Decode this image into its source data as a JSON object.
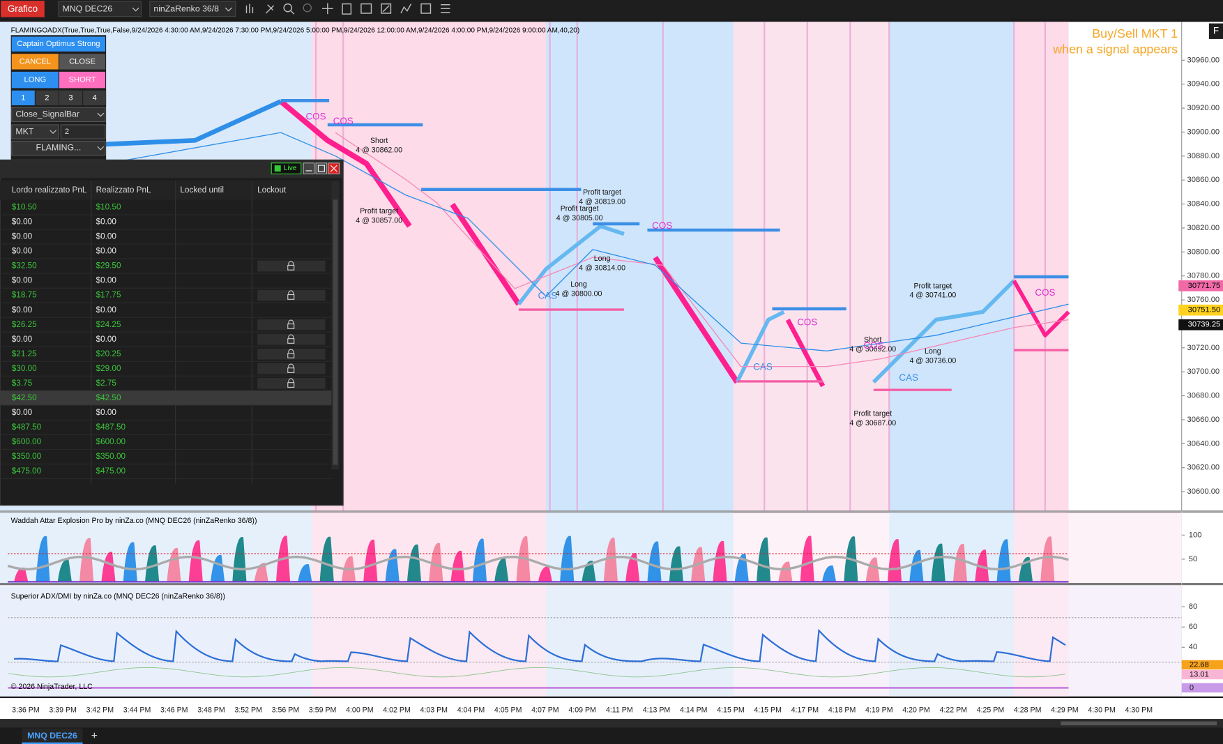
{
  "toolbar": {
    "app_button": "Grafico",
    "instrument": "MNQ DEC26",
    "bar_type": "ninZaRenko 36/8"
  },
  "main_panel": {
    "indicator_label": "FLAMINGOADX(True,True,True,False,9/24/2026 4:30:00 AM,9/24/2026 7:30:00 PM,9/24/2026 5:00:00 PM,9/24/2026 12:00:00 AM,9/24/2026 4:00:00 PM,9/24/2026 9:00:00 AM,40,20)",
    "annotation_lines": [
      "Buy/Sell MKT 1",
      "when a signal appears"
    ],
    "corner_button": "F",
    "price_axis": {
      "ylim": [
        30584,
        30992
      ],
      "ticks": [
        {
          "value": 30960,
          "label": "30960.00"
        },
        {
          "value": 30940,
          "label": "30940.00"
        },
        {
          "value": 30920,
          "label": "30920.00"
        },
        {
          "value": 30900,
          "label": "30900.00"
        },
        {
          "value": 30880,
          "label": "30880.00"
        },
        {
          "value": 30860,
          "label": "30860.00"
        },
        {
          "value": 30840,
          "label": "30840.00"
        },
        {
          "value": 30820,
          "label": "30820.00"
        },
        {
          "value": 30800,
          "label": "30800.00"
        },
        {
          "value": 30780,
          "label": "30780.00"
        },
        {
          "value": 30760,
          "label": "30760.00"
        },
        {
          "value": 30740,
          "label": "30740.00"
        },
        {
          "value": 30720,
          "label": "30720.00"
        },
        {
          "value": 30700,
          "label": "30700.00"
        },
        {
          "value": 30680,
          "label": "30680.00"
        },
        {
          "value": 30660,
          "label": "30660.00"
        },
        {
          "value": 30640,
          "label": "30640.00"
        },
        {
          "value": 30620,
          "label": "30620.00"
        },
        {
          "value": 30600,
          "label": "30600.00"
        }
      ]
    },
    "price_tags": [
      {
        "value": 30771.75,
        "label": "30771.75",
        "color": "#f06aa8"
      },
      {
        "value": 30751.5,
        "label": "30751.50",
        "color": "#ffd21f"
      },
      {
        "value": 30739.25,
        "label": "30739.25",
        "color": "#111111"
      }
    ],
    "trade_labels": [
      {
        "action": "Short",
        "detail": "4 @ 30862.00"
      },
      {
        "action": "Profit target",
        "detail": "4 @ 30857.00"
      },
      {
        "action": "Profit target",
        "detail": "4 @ 30819.00"
      },
      {
        "action": "Profit target",
        "detail": "4 @ 30805.00"
      },
      {
        "action": "Long",
        "detail": "4 @ 30814.00"
      },
      {
        "action": "Long",
        "detail": "4 @ 30800.00"
      },
      {
        "action": "Profit target",
        "detail": "4 @ 30741.00"
      },
      {
        "action": "Short",
        "detail": "4 @ 30692.00"
      },
      {
        "action": "Long",
        "detail": "4 @ 30736.00"
      },
      {
        "action": "Profit target",
        "detail": "4 @ 30687.00"
      }
    ],
    "signal_markers": [
      "COS",
      "COS",
      "COS",
      "COS",
      "COS",
      "COS",
      "CAS",
      "CAS",
      "CAS"
    ]
  },
  "order_panel": {
    "strategy": "Captain Optimus Strong",
    "cancel": "CANCEL",
    "close": "CLOSE",
    "long": "LONG",
    "short": "SHORT",
    "quantity_presets": [
      1,
      2,
      3,
      4
    ],
    "order_mode": "Close_SignalBar",
    "order_type": "MKT",
    "quantity": 2,
    "strategy_select": "FLAMING..."
  },
  "pnl_window": {
    "status": "Live",
    "columns": [
      "Lordo realizzato PnL",
      "Realizzato PnL",
      "Locked until",
      "Lockout"
    ],
    "selected_row": 13,
    "rows": [
      {
        "gross": "$10.50",
        "net": "$10.50",
        "positive": true,
        "locked": false
      },
      {
        "gross": "$0.00",
        "net": "$0.00",
        "positive": false,
        "locked": false
      },
      {
        "gross": "$0.00",
        "net": "$0.00",
        "positive": false,
        "locked": false
      },
      {
        "gross": "$0.00",
        "net": "$0.00",
        "positive": false,
        "locked": false
      },
      {
        "gross": "$32.50",
        "net": "$29.50",
        "positive": true,
        "locked": true
      },
      {
        "gross": "$0.00",
        "net": "$0.00",
        "positive": false,
        "locked": false
      },
      {
        "gross": "$18.75",
        "net": "$17.75",
        "positive": true,
        "locked": true
      },
      {
        "gross": "$0.00",
        "net": "$0.00",
        "positive": false,
        "locked": false
      },
      {
        "gross": "$26.25",
        "net": "$24.25",
        "positive": true,
        "locked": true
      },
      {
        "gross": "$0.00",
        "net": "$0.00",
        "positive": false,
        "locked": true
      },
      {
        "gross": "$21.25",
        "net": "$20.25",
        "positive": true,
        "locked": true
      },
      {
        "gross": "$30.00",
        "net": "$29.00",
        "positive": true,
        "locked": true
      },
      {
        "gross": "$3.75",
        "net": "$2.75",
        "positive": true,
        "locked": true
      },
      {
        "gross": "$42.50",
        "net": "$42.50",
        "positive": true,
        "locked": false
      },
      {
        "gross": "$0.00",
        "net": "$0.00",
        "positive": false,
        "locked": false
      },
      {
        "gross": "$487.50",
        "net": "$487.50",
        "positive": true,
        "locked": false
      },
      {
        "gross": "$600.00",
        "net": "$600.00",
        "positive": true,
        "locked": false
      },
      {
        "gross": "$350.00",
        "net": "$350.00",
        "positive": true,
        "locked": false
      },
      {
        "gross": "$475.00",
        "net": "$475.00",
        "positive": true,
        "locked": false
      }
    ]
  },
  "wae_panel": {
    "title": "Waddah Attar Explosion Pro by ninZa.co (MNQ DEC26 (ninZaRenko 36/8))",
    "ylim": [
      0,
      147
    ],
    "ticks": [
      100,
      50
    ]
  },
  "adx_panel": {
    "title": "Superior ADX/DMI by ninZa.co (MNQ DEC26 (ninZaRenko 36/8))",
    "copyright": "© 2026 NinjaTrader, LLC",
    "ylim": [
      -8.5,
      100
    ],
    "ticks": [
      80,
      60,
      40
    ],
    "tags": [
      {
        "value": 22.68,
        "color": "#f7a21b"
      },
      {
        "value": 13.01,
        "color": "#f9b5d6"
      },
      {
        "value": 0,
        "color": "#c89ae8"
      }
    ]
  },
  "time_axis": {
    "labels": [
      "3:36 PM",
      "3:39 PM",
      "3:42 PM",
      "3:44 PM",
      "3:46 PM",
      "3:48 PM",
      "3:52 PM",
      "3:56 PM",
      "3:59 PM",
      "4:00 PM",
      "4:02 PM",
      "4:03 PM",
      "4:04 PM",
      "4:05 PM",
      "4:07 PM",
      "4:09 PM",
      "4:11 PM",
      "4:13 PM",
      "4:14 PM",
      "4:15 PM",
      "4:15 PM",
      "4:17 PM",
      "4:18 PM",
      "4:19 PM",
      "4:20 PM",
      "4:22 PM",
      "4:25 PM",
      "4:28 PM",
      "4:29 PM",
      "4:30 PM",
      "4:30 PM"
    ]
  },
  "tabs": {
    "active": "MNQ DEC26",
    "add": "+"
  }
}
